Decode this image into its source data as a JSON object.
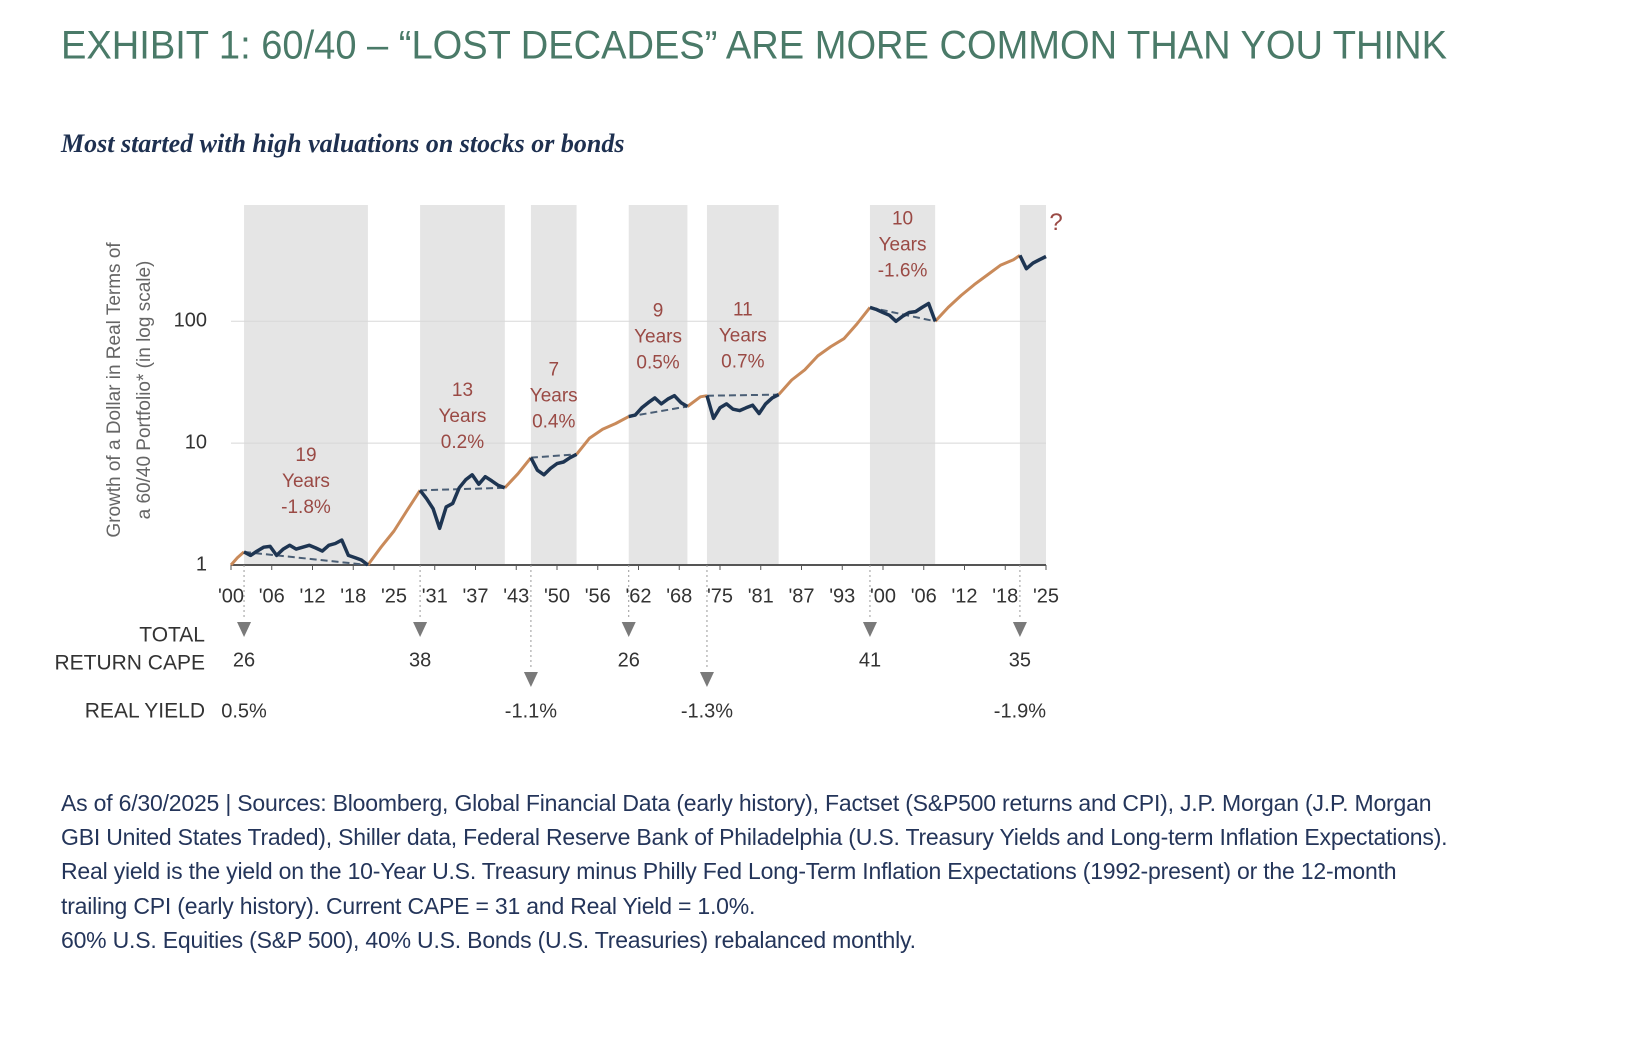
{
  "chart_data": {
    "type": "line",
    "title": "EXHIBIT 1: 60/40 – “LOST DECADES” ARE MORE COMMON THAN YOU THINK",
    "subtitle": "Most started with high valuations on stocks or bonds",
    "y_label": [
      "Growth of a Dollar in Real Terms of",
      "a 60/40 Portfolio* (in log scale)"
    ],
    "log_scale": true,
    "grid": true,
    "xlim": [
      1900,
      2025
    ],
    "xticks": [
      {
        "value": 1900,
        "label": "'00"
      },
      {
        "value": 1906.25,
        "label": "'06"
      },
      {
        "value": 1912.5,
        "label": "'12"
      },
      {
        "value": 1918.75,
        "label": "'18"
      },
      {
        "value": 1925,
        "label": "'25"
      },
      {
        "value": 1931.25,
        "label": "'31"
      },
      {
        "value": 1937.5,
        "label": "'37"
      },
      {
        "value": 1943.75,
        "label": "'43"
      },
      {
        "value": 1950,
        "label": "'50"
      },
      {
        "value": 1956.25,
        "label": "'56"
      },
      {
        "value": 1962.5,
        "label": "'62"
      },
      {
        "value": 1968.75,
        "label": "'68"
      },
      {
        "value": 1975,
        "label": "'75"
      },
      {
        "value": 1981.25,
        "label": "'81"
      },
      {
        "value": 1987.5,
        "label": "'87"
      },
      {
        "value": 1993.75,
        "label": "'93"
      },
      {
        "value": 2000,
        "label": "'00"
      },
      {
        "value": 2006.25,
        "label": "'06"
      },
      {
        "value": 2012.5,
        "label": "'12"
      },
      {
        "value": 2018.75,
        "label": "'18"
      },
      {
        "value": 2025,
        "label": "'25"
      }
    ],
    "ylim": [
      1,
      900
    ],
    "yticks": [
      1,
      10,
      100
    ],
    "x": [
      1900,
      1901,
      1902,
      1903,
      1904,
      1905,
      1906,
      1907,
      1908,
      1909,
      1910,
      1911,
      1912,
      1913,
      1914,
      1915,
      1916,
      1917,
      1918,
      1919,
      1920,
      1921,
      1923,
      1925,
      1927,
      1929,
      1930,
      1931,
      1932,
      1933,
      1934,
      1935,
      1936,
      1937,
      1938,
      1939,
      1940,
      1941,
      1942,
      1944,
      1946,
      1947,
      1948,
      1949,
      1950,
      1951,
      1952,
      1953,
      1955,
      1957,
      1959,
      1961,
      1962,
      1963,
      1964,
      1965,
      1966,
      1967,
      1968,
      1969,
      1970,
      1972,
      1973,
      1974,
      1975,
      1976,
      1977,
      1978,
      1979,
      1980,
      1981,
      1982,
      1983,
      1984,
      1986,
      1988,
      1990,
      1992,
      1994,
      1996,
      1998,
      1999,
      2000,
      2001,
      2002,
      2003,
      2004,
      2005,
      2006,
      2007,
      2008,
      2010,
      2012,
      2014,
      2016,
      2018,
      2020,
      2021,
      2022,
      2023,
      2024,
      2025
    ],
    "series": [
      {
        "color": "#c98a5a",
        "values": [
          1.0,
          1.15,
          1.28,
          null,
          null,
          null,
          null,
          null,
          null,
          null,
          null,
          null,
          null,
          null,
          null,
          null,
          null,
          null,
          null,
          null,
          null,
          1.0,
          1.4,
          1.9,
          2.8,
          4.1,
          null,
          null,
          null,
          null,
          null,
          null,
          null,
          null,
          null,
          null,
          null,
          null,
          4.3,
          5.6,
          7.6,
          null,
          null,
          null,
          null,
          null,
          null,
          8.1,
          11.0,
          13.0,
          14.5,
          16.5,
          null,
          null,
          null,
          null,
          null,
          null,
          null,
          null,
          20.0,
          24.0,
          24.5,
          null,
          null,
          null,
          null,
          null,
          null,
          null,
          null,
          null,
          null,
          25.0,
          33,
          40,
          52,
          62,
          72,
          95,
          130,
          null,
          null,
          null,
          null,
          null,
          null,
          null,
          null,
          null,
          100,
          130,
          163,
          200,
          240,
          288,
          320,
          347,
          null,
          null,
          null,
          null
        ]
      },
      {
        "color": "#1e3552",
        "values": [
          null,
          null,
          1.28,
          1.2,
          1.3,
          1.4,
          1.42,
          1.2,
          1.35,
          1.45,
          1.35,
          1.4,
          1.45,
          1.38,
          1.3,
          1.45,
          1.5,
          1.6,
          1.2,
          1.15,
          1.1,
          1.0,
          null,
          null,
          null,
          4.1,
          3.5,
          2.9,
          2.0,
          3.0,
          3.2,
          4.3,
          5.0,
          5.5,
          4.6,
          5.3,
          4.9,
          4.5,
          4.3,
          null,
          7.6,
          6.0,
          5.5,
          6.2,
          6.8,
          7.0,
          7.6,
          8.1,
          null,
          null,
          null,
          16.5,
          17.0,
          19.5,
          21.5,
          23.5,
          21.0,
          23.0,
          24.5,
          21.5,
          20.0,
          null,
          24.5,
          16.0,
          19.5,
          21.0,
          19.0,
          18.5,
          19.5,
          20.5,
          17.5,
          21.0,
          23.5,
          25.0,
          null,
          null,
          null,
          null,
          null,
          null,
          130,
          125,
          118,
          112,
          100,
          110,
          118,
          120,
          130,
          140,
          100,
          null,
          null,
          null,
          null,
          null,
          null,
          347,
          270,
          300,
          320,
          340
        ]
      }
    ],
    "periods": [
      {
        "start": 1902,
        "end": 1921,
        "years": 19,
        "unit": "Years",
        "return": -1.8,
        "return_label": "-1.8%"
      },
      {
        "start": 1929,
        "end": 1942,
        "years": 13,
        "unit": "Years",
        "return": 0.2,
        "return_label": "0.2%"
      },
      {
        "start": 1946,
        "end": 1953,
        "years": 7,
        "unit": "Years",
        "return": 0.4,
        "return_label": "0.4%"
      },
      {
        "start": 1961,
        "end": 1970,
        "years": 9,
        "unit": "Years",
        "return": 0.5,
        "return_label": "0.5%"
      },
      {
        "start": 1973,
        "end": 1984,
        "years": 11,
        "unit": "Years",
        "return": 0.7,
        "return_label": "0.7%"
      },
      {
        "start": 1998,
        "end": 2008,
        "years": 10,
        "unit": "Years",
        "return": -1.6,
        "return_label": "-1.6%"
      },
      {
        "start": 2021,
        "end": 2025,
        "label": "?"
      }
    ],
    "cape": {
      "label": [
        "TOTAL",
        "RETURN CAPE"
      ],
      "x": [
        1902,
        1929,
        1961,
        1998,
        2021
      ],
      "values": [
        26,
        38,
        26,
        41,
        35
      ]
    },
    "real_yield": {
      "label": "REAL YIELD",
      "x": [
        1902,
        1946,
        1973,
        2021
      ],
      "values": [
        0.5,
        -1.1,
        -1.3,
        -1.9
      ],
      "value_labels": [
        "0.5%",
        "-1.1%",
        "-1.3%",
        "-1.9%"
      ]
    },
    "footnote": [
      "As of 6/30/2025 | Sources: Bloomberg, Global Financial Data (early history), Factset (S&P500 returns and CPI), J.P. Morgan (J.P. Morgan",
      "GBI United States Traded), Shiller data, Federal Reserve Bank of Philadelphia (U.S. Treasury Yields and Long-term Inflation Expectations).",
      "Real yield is the yield on the 10-Year U.S. Treasury minus Philly Fed Long-Term Inflation Expectations (1992-present) or the 12-month",
      "trailing CPI (early history). Current CAPE = 31 and Real Yield = 1.0%.",
      "60% U.S. Equities (S&P 500), 40% U.S. Bonds (U.S. Treasuries) rebalanced monthly."
    ]
  }
}
